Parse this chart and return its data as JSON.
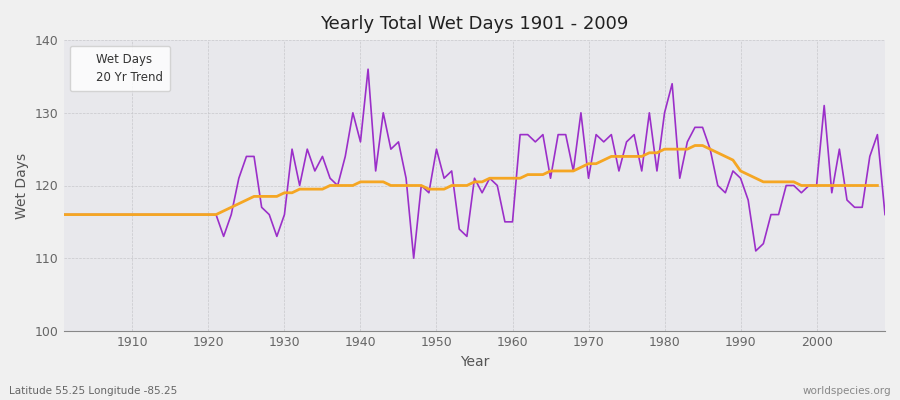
{
  "title": "Yearly Total Wet Days 1901 - 2009",
  "xlabel": "Year",
  "ylabel": "Wet Days",
  "footnote_left": "Latitude 55.25 Longitude -85.25",
  "footnote_right": "worldspecies.org",
  "ylim": [
    100,
    140
  ],
  "xlim": [
    1901,
    2009
  ],
  "yticks": [
    100,
    110,
    120,
    130,
    140
  ],
  "xticks": [
    1910,
    1920,
    1930,
    1940,
    1950,
    1960,
    1970,
    1980,
    1990,
    2000
  ],
  "bg_color": "#f0f0f0",
  "plot_bg_color": "#e8e8ec",
  "line_color": "#9b2fc9",
  "trend_color": "#f5a623",
  "legend_labels": [
    "Wet Days",
    "20 Yr Trend"
  ],
  "years": [
    1901,
    1902,
    1903,
    1904,
    1905,
    1906,
    1907,
    1908,
    1909,
    1910,
    1911,
    1912,
    1913,
    1914,
    1915,
    1916,
    1917,
    1918,
    1919,
    1920,
    1921,
    1922,
    1923,
    1924,
    1925,
    1926,
    1927,
    1928,
    1929,
    1930,
    1931,
    1932,
    1933,
    1934,
    1935,
    1936,
    1937,
    1938,
    1939,
    1940,
    1941,
    1942,
    1943,
    1944,
    1945,
    1946,
    1947,
    1948,
    1949,
    1950,
    1951,
    1952,
    1953,
    1954,
    1955,
    1956,
    1957,
    1958,
    1959,
    1960,
    1961,
    1962,
    1963,
    1964,
    1965,
    1966,
    1967,
    1968,
    1969,
    1970,
    1971,
    1972,
    1973,
    1974,
    1975,
    1976,
    1977,
    1978,
    1979,
    1980,
    1981,
    1982,
    1983,
    1984,
    1985,
    1986,
    1987,
    1988,
    1989,
    1990,
    1991,
    1992,
    1993,
    1994,
    1995,
    1996,
    1997,
    1998,
    1999,
    2000,
    2001,
    2002,
    2003,
    2004,
    2005,
    2006,
    2007,
    2008,
    2009
  ],
  "wet_days": [
    116,
    116,
    116,
    116,
    116,
    116,
    116,
    116,
    116,
    116,
    116,
    116,
    116,
    116,
    116,
    116,
    116,
    116,
    116,
    116,
    116,
    113,
    116,
    121,
    124,
    124,
    117,
    116,
    113,
    116,
    125,
    120,
    125,
    122,
    124,
    121,
    120,
    124,
    130,
    126,
    136,
    122,
    130,
    125,
    126,
    121,
    110,
    120,
    119,
    125,
    121,
    122,
    114,
    113,
    121,
    119,
    121,
    120,
    115,
    115,
    127,
    127,
    126,
    127,
    121,
    127,
    127,
    122,
    130,
    121,
    127,
    126,
    127,
    122,
    126,
    127,
    122,
    130,
    122,
    130,
    134,
    121,
    126,
    128,
    128,
    125,
    120,
    119,
    122,
    121,
    118,
    111,
    112,
    116,
    116,
    120,
    120,
    119,
    120,
    120,
    131,
    119,
    125,
    118,
    117,
    117,
    124,
    127,
    116
  ],
  "trend": [
    116,
    116,
    116,
    116,
    116,
    116,
    116,
    116,
    116,
    116,
    116,
    116,
    116,
    116,
    116,
    116,
    116,
    116,
    116,
    116,
    116,
    116.5,
    117,
    117.5,
    118,
    118.5,
    118.5,
    118.5,
    118.5,
    119,
    119,
    119.5,
    119.5,
    119.5,
    119.5,
    120,
    120,
    120,
    120,
    120.5,
    120.5,
    120.5,
    120.5,
    120,
    120,
    120,
    120,
    120,
    119.5,
    119.5,
    119.5,
    120,
    120,
    120,
    120.5,
    120.5,
    121,
    121,
    121,
    121,
    121,
    121.5,
    121.5,
    121.5,
    122,
    122,
    122,
    122,
    122.5,
    123,
    123,
    123.5,
    124,
    124,
    124,
    124,
    124,
    124.5,
    124.5,
    125,
    125,
    125,
    125,
    125.5,
    125.5,
    125,
    124.5,
    124,
    123.5,
    122,
    121.5,
    121,
    120.5,
    120.5,
    120.5,
    120.5,
    120.5,
    120,
    120,
    120,
    120,
    120,
    120,
    120,
    120,
    120,
    120,
    120,
    null
  ]
}
